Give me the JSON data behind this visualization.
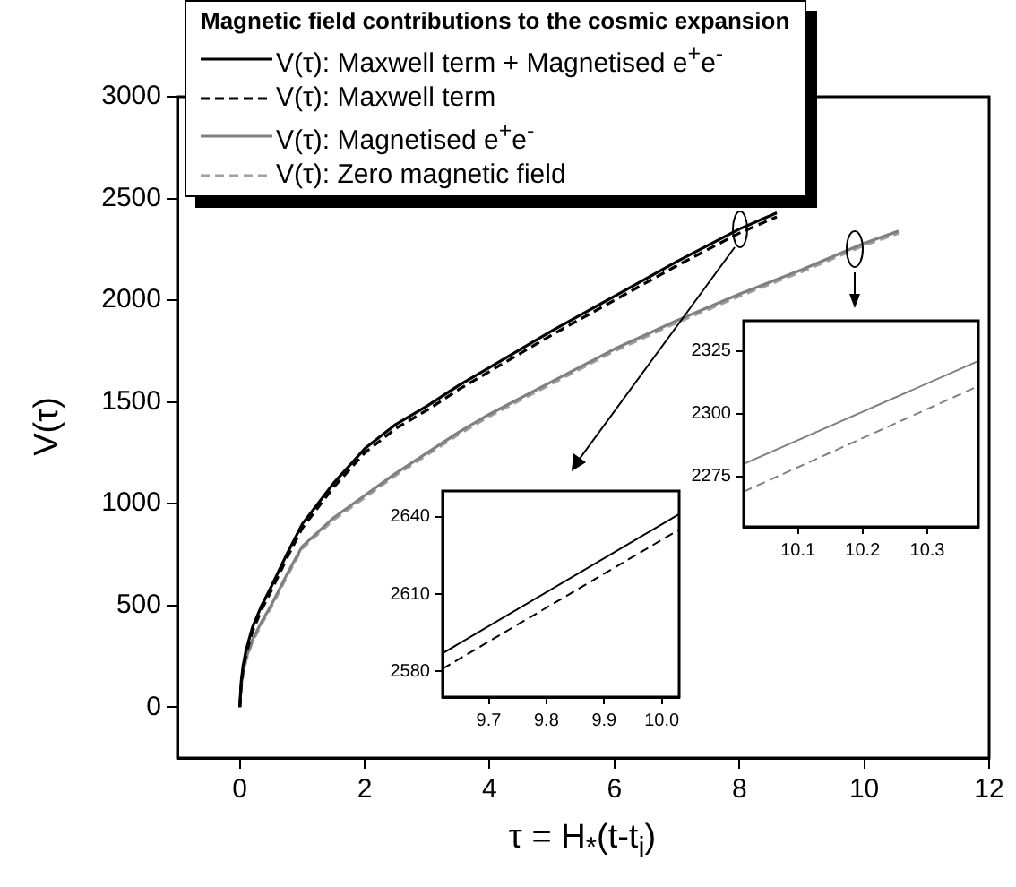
{
  "chart_data": [
    {
      "type": "line",
      "legend_title": "Magnetic field contributions to the cosmic expansion",
      "legend": "top left",
      "xlabel": "τ = H$_{*}$(t-t$_{i}$)",
      "ylabel": "V(τ)",
      "marker": "none",
      "xlim": [
        -1,
        12
      ],
      "xticks": [
        0,
        2,
        4,
        6,
        8,
        10,
        12
      ],
      "ylim": [
        -250,
        3000
      ],
      "yticks": [
        0,
        500,
        1000,
        1500,
        2000,
        2500,
        3000
      ],
      "series": [
        {
          "name": "V(τ): Maxwell term + Magnetised e$^{+}$e$^{-}$",
          "color": "#000000",
          "line_style": "solid",
          "x": [
            0,
            0.02,
            0.05,
            0.1,
            0.2,
            0.35,
            0.5,
            0.75,
            1,
            1.5,
            2,
            2.5,
            3,
            3.5,
            4,
            5,
            6,
            7,
            8,
            8.6
          ],
          "values": [
            0,
            120,
            200,
            280,
            390,
            500,
            590,
            750,
            900,
            1100,
            1270,
            1390,
            1480,
            1580,
            1670,
            1850,
            2020,
            2190,
            2350,
            2430
          ]
        },
        {
          "name": "V(τ): Maxwell term",
          "color": "#000000",
          "line_style": "dashed",
          "x": [
            0,
            0.02,
            0.05,
            0.1,
            0.2,
            0.35,
            0.5,
            0.75,
            1,
            1.5,
            2,
            2.5,
            3,
            3.5,
            4,
            5,
            6,
            7,
            8,
            8.6
          ],
          "values": [
            0,
            100,
            180,
            260,
            370,
            480,
            570,
            730,
            880,
            1080,
            1250,
            1370,
            1460,
            1560,
            1650,
            1830,
            2000,
            2170,
            2330,
            2410
          ]
        },
        {
          "name": "V(τ): Magnetised e$^{+}$e$^{-}$",
          "color": "#808080",
          "line_style": "solid",
          "x": [
            0,
            0.02,
            0.05,
            0.1,
            0.2,
            0.35,
            0.5,
            0.75,
            1,
            1.5,
            2,
            2.5,
            3,
            3.5,
            4,
            5,
            6,
            7,
            8,
            9,
            10,
            10.55
          ],
          "values": [
            0,
            100,
            170,
            240,
            330,
            420,
            500,
            650,
            790,
            930,
            1040,
            1150,
            1250,
            1350,
            1440,
            1600,
            1760,
            1900,
            2030,
            2150,
            2280,
            2340
          ]
        },
        {
          "name": "V(τ): Zero magnetic field",
          "color": "#a0a0a0",
          "line_style": "dashed",
          "x": [
            0,
            0.02,
            0.05,
            0.1,
            0.2,
            0.35,
            0.5,
            0.75,
            1,
            1.5,
            2,
            2.5,
            3,
            3.5,
            4,
            5,
            6,
            7,
            8,
            9,
            10,
            10.55
          ],
          "values": [
            0,
            90,
            160,
            230,
            320,
            410,
            490,
            640,
            780,
            920,
            1030,
            1140,
            1240,
            1340,
            1430,
            1590,
            1750,
            1890,
            2020,
            2140,
            2270,
            2330
          ]
        }
      ]
    },
    {
      "type": "line",
      "marker": "none",
      "xlim": [
        9.62,
        10.03
      ],
      "xticks": [
        9.7,
        9.8,
        9.9,
        {
          "value": 10,
          "label": "10.0"
        }
      ],
      "ylim": [
        2570,
        2650
      ],
      "yticks": [
        2580,
        2610,
        2640
      ],
      "series": [
        {
          "color": "#000000",
          "line_style": "solid",
          "x": [
            9.62,
            10.03
          ],
          "values": [
            2587,
            2641
          ]
        },
        {
          "color": "#000000",
          "line_style": "dashed",
          "x": [
            9.62,
            10.03
          ],
          "values": [
            2581,
            2635
          ]
        }
      ]
    },
    {
      "type": "line",
      "marker": "none",
      "xlim": [
        10.016,
        10.379
      ],
      "xticks": [
        10.1,
        10.2,
        10.3
      ],
      "ylim": [
        2255,
        2337
      ],
      "yticks": [
        2275,
        2300,
        2325
      ],
      "series": [
        {
          "color": "#808080",
          "line_style": "solid",
          "x": [
            10.016,
            10.379
          ],
          "values": [
            2280,
            2321
          ]
        },
        {
          "color": "#808080",
          "line_style": "dashed",
          "x": [
            10.016,
            10.379
          ],
          "values": [
            2269,
            2311
          ]
        }
      ]
    }
  ]
}
